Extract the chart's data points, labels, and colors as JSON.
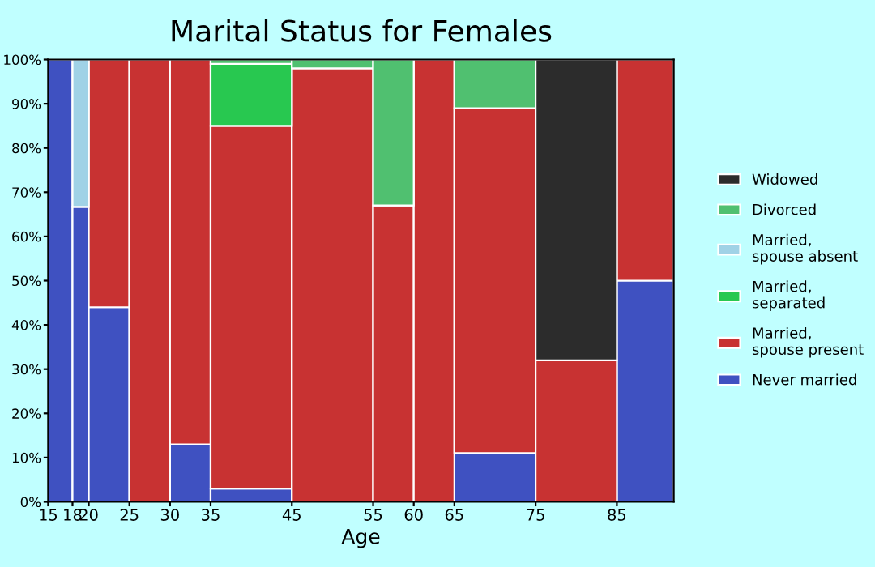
{
  "chart_data": {
    "type": "bar",
    "title": "Marital Status for Females",
    "xlabel": "Age",
    "stacked": true,
    "x": [
      16.5,
      19,
      22.5,
      27.5,
      32.5,
      40,
      50,
      57.5,
      62.5,
      70,
      80,
      88.5
    ],
    "series": [
      {
        "name": "Never married",
        "color": "#3f51c1",
        "values": [
          100,
          66.7,
          44,
          null,
          13,
          3,
          null,
          null,
          null,
          11,
          null,
          50
        ]
      },
      {
        "name": "Married, spouse present",
        "color": "#c83232",
        "values": [
          null,
          null,
          56,
          100,
          87,
          82,
          98,
          67,
          100,
          78,
          32,
          50
        ]
      },
      {
        "name": "Married, separated",
        "color": "#28c850",
        "values": [
          null,
          null,
          null,
          null,
          null,
          14,
          null,
          null,
          null,
          null,
          null,
          null
        ]
      },
      {
        "name": "Married, spouse absent",
        "color": "#a0d2e6",
        "values": [
          null,
          33.3,
          null,
          null,
          null,
          null,
          null,
          null,
          null,
          null,
          null,
          null
        ]
      },
      {
        "name": "Divorced",
        "color": "#50c070",
        "values": [
          null,
          null,
          null,
          null,
          null,
          1,
          2,
          33,
          null,
          11,
          null,
          null
        ]
      },
      {
        "name": "Widowed",
        "color": "#2c2c2c",
        "values": [
          null,
          null,
          null,
          null,
          null,
          null,
          null,
          null,
          null,
          null,
          68,
          null
        ]
      }
    ],
    "xlim": [
      15,
      92
    ],
    "xticks": [
      15,
      18,
      20,
      25,
      30,
      35,
      45,
      55,
      60,
      65,
      75,
      85
    ],
    "ylim": [
      0,
      100
    ],
    "yticks": [
      {
        "value": 0,
        "label": "0%"
      },
      {
        "value": 10,
        "label": "10%"
      },
      {
        "value": 20,
        "label": "20%"
      },
      {
        "value": 30,
        "label": "30%"
      },
      {
        "value": 40,
        "label": "40%"
      },
      {
        "value": 50,
        "label": "50%"
      },
      {
        "value": 60,
        "label": "60%"
      },
      {
        "value": 70,
        "label": "70%"
      },
      {
        "value": 80,
        "label": "80%"
      },
      {
        "value": 90,
        "label": "90%"
      },
      {
        "value": 100,
        "label": "100%"
      }
    ],
    "grid": false,
    "legend": "right"
  }
}
